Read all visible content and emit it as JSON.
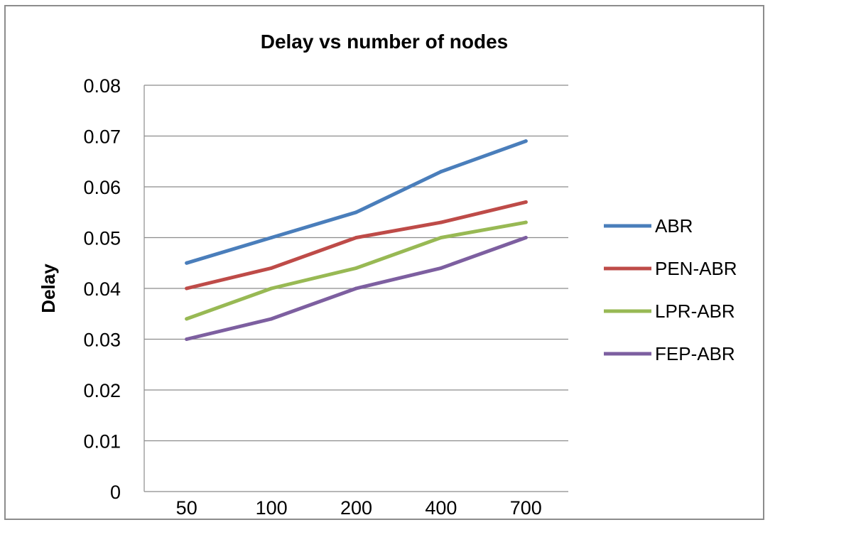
{
  "chart_data": {
    "type": "line",
    "title": "Delay vs number of nodes",
    "xlabel": "",
    "ylabel": "Delay",
    "categories": [
      "50",
      "100",
      "200",
      "400",
      "700"
    ],
    "ylim": [
      0,
      0.08
    ],
    "yticks": [
      "0",
      "0.01",
      "0.02",
      "0.03",
      "0.04",
      "0.05",
      "0.06",
      "0.07",
      "0.08"
    ],
    "grid": true,
    "legend_position": "right",
    "series": [
      {
        "name": "ABR",
        "color": "#4a7ebb",
        "values": [
          0.045,
          0.05,
          0.055,
          0.063,
          0.069
        ]
      },
      {
        "name": "PEN-ABR",
        "color": "#be4b48",
        "values": [
          0.04,
          0.044,
          0.05,
          0.053,
          0.057
        ]
      },
      {
        "name": "LPR-ABR",
        "color": "#98b954",
        "values": [
          0.034,
          0.04,
          0.044,
          0.05,
          0.053
        ]
      },
      {
        "name": "FEP-ABR",
        "color": "#7d5fa0",
        "values": [
          0.03,
          0.034,
          0.04,
          0.044,
          0.05
        ]
      }
    ]
  }
}
